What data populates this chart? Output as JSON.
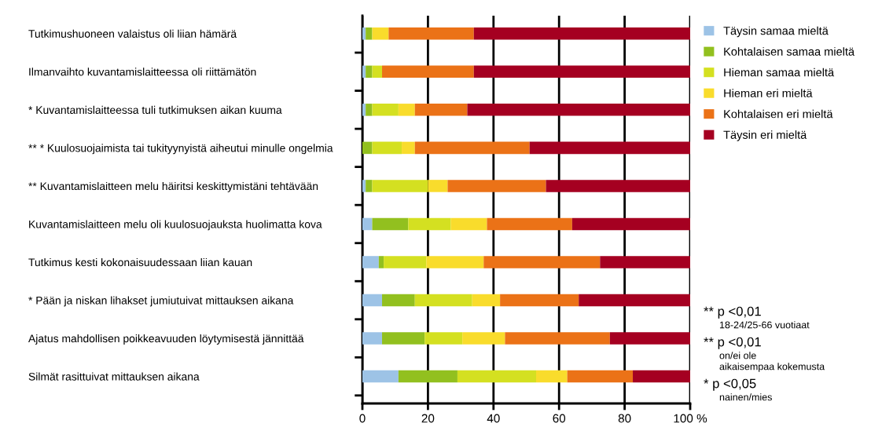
{
  "chart_data": {
    "type": "bar",
    "orientation": "horizontal",
    "stacked": true,
    "categories": [
      "Tutkimushuoneen valaistus oli liian hämärä",
      "Ilmanvaihto kuvantamislaitteessa oli riittämätön",
      "* Kuvantamislaitteessa tuli tutkimuksen aikan kuuma",
      "** * Kuulosuojaimista tai tukityynyistä aiheutui minulle ongelmia",
      "** Kuvantamislaitteen melu häiritsi keskittymistäni tehtävään",
      "Kuvantamislaitteen melu oli kuulosuojauksta huolimatta kova",
      "Tutkimus kesti kokonaisuudessaan liian kauan",
      "* Pään ja niskan lihakset jumiutuivat mittauksen aikana",
      "Ajatus mahdollisen poikkeavuuden löytymisestä jännittää",
      "Silmät rasittuivat mittauksen aikana"
    ],
    "series": [
      {
        "name": "Täysin samaa mieltä",
        "color": "#9dc3e6",
        "values": [
          1,
          1,
          1,
          0,
          1,
          3,
          5,
          6,
          6,
          11
        ]
      },
      {
        "name": "Kohtalaisen samaa mieltä",
        "color": "#92c01f",
        "values": [
          2,
          2,
          2,
          3,
          2,
          11,
          1.5,
          10,
          13,
          18
        ]
      },
      {
        "name": "Hieman samaa mieltä",
        "color": "#d4e021",
        "values": [
          0,
          3,
          8,
          9,
          17,
          13,
          13,
          17.5,
          11.5,
          24
        ]
      },
      {
        "name": "Hieman eri mieltä",
        "color": "#f9dc2c",
        "values": [
          5,
          0,
          5,
          4,
          6,
          11,
          17.5,
          8.5,
          13,
          9.5
        ]
      },
      {
        "name": "Kohtalaisen eri mieltä",
        "color": "#eb7217",
        "values": [
          26,
          28,
          16,
          35,
          30,
          26,
          35.5,
          24,
          32,
          20
        ]
      },
      {
        "name": "Täysin eri mieltä",
        "color": "#a50021",
        "values": [
          66,
          66,
          68,
          49,
          44,
          36,
          27.5,
          34,
          24.5,
          17.5
        ]
      }
    ],
    "xlim": [
      0,
      100
    ],
    "xticks": [
      0,
      20,
      40,
      60,
      {
        "value": 100,
        "label": "100 %"
      },
      80
    ],
    "grid": "x",
    "legend": "top right",
    "annotations": [
      "** p <0,01",
      "18-24/25-66 vuotiaat",
      "** p <0,01",
      "on/ei ole",
      "aikaisempaa kokemusta",
      "* p <0,05",
      "nainen/mies"
    ]
  }
}
